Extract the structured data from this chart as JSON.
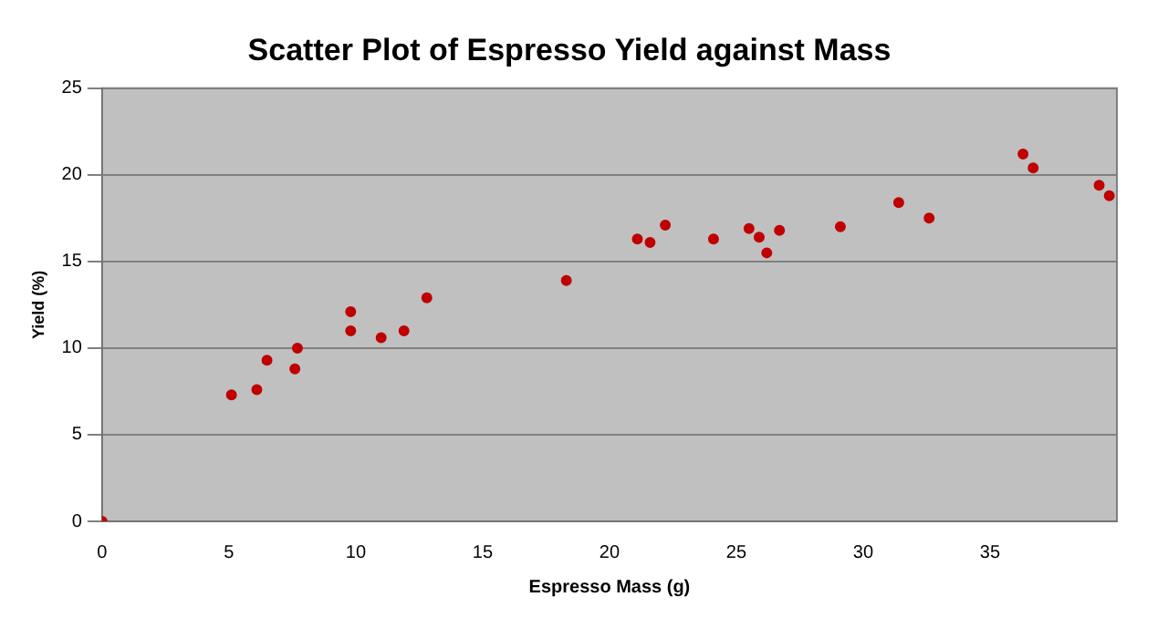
{
  "chart_data": {
    "type": "scatter",
    "title": "Scatter Plot of Espresso Yield against Mass",
    "xlabel": "Espresso Mass (g)",
    "ylabel": "Yield (%)",
    "x": [
      0,
      5.1,
      6.1,
      6.5,
      7.6,
      7.7,
      9.8,
      9.8,
      11.0,
      11.9,
      12.8,
      18.3,
      21.1,
      21.6,
      22.2,
      24.1,
      25.5,
      25.9,
      26.2,
      26.7,
      29.1,
      31.4,
      32.6,
      36.3,
      36.7,
      39.3,
      39.7
    ],
    "series": [
      {
        "color": "#c00000",
        "values": [
          0,
          7.3,
          7.6,
          9.3,
          8.8,
          10.0,
          12.1,
          11.0,
          10.6,
          11.0,
          12.9,
          13.9,
          16.3,
          16.1,
          17.1,
          16.3,
          16.9,
          16.4,
          15.5,
          16.8,
          17.0,
          18.4,
          17.5,
          21.2,
          20.4,
          19.4,
          18.8
        ]
      }
    ],
    "xlim": [
      0,
      40
    ],
    "xticks": [
      0,
      5,
      10,
      15,
      20,
      25,
      30,
      35
    ],
    "ylim": [
      0,
      25
    ],
    "yticks": [
      0,
      5,
      10,
      15,
      20,
      25
    ],
    "grid": "y",
    "legend": false,
    "marker": "circle"
  }
}
